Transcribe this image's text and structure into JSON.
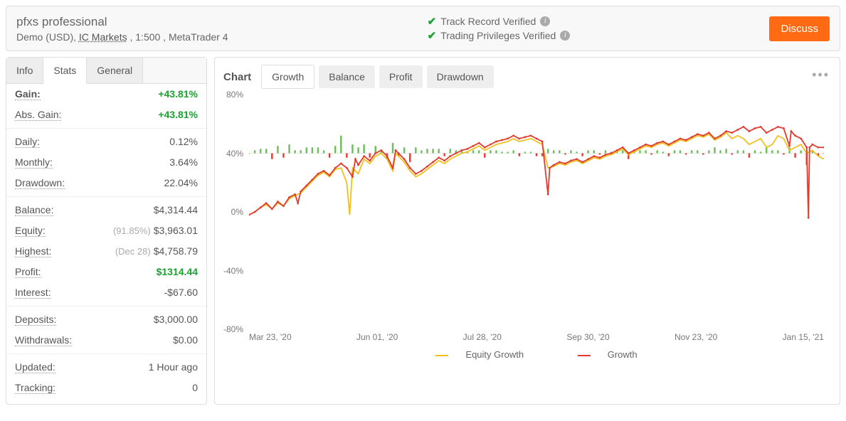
{
  "header": {
    "title": "pfxs professional",
    "sub_prefix": "Demo (USD), ",
    "broker": "IC Markets",
    "sub_suffix": " , 1:500 , MetaTrader 4",
    "verify1": "Track Record Verified",
    "verify2": "Trading Privileges Verified",
    "discuss": "Discuss"
  },
  "tabs": {
    "info": "Info",
    "stats": "Stats",
    "general": "General"
  },
  "stats": {
    "gain_label": "Gain:",
    "gain_value": "+43.81%",
    "absgain_label": "Abs. Gain:",
    "absgain_value": "+43.81%",
    "daily_label": "Daily:",
    "daily_value": "0.12%",
    "monthly_label": "Monthly:",
    "monthly_value": "3.64%",
    "drawdown_label": "Drawdown:",
    "drawdown_value": "22.04%",
    "balance_label": "Balance:",
    "balance_value": "$4,314.44",
    "equity_label": "Equity:",
    "equity_note": "(91.85%)",
    "equity_value": "$3,963.01",
    "highest_label": "Highest:",
    "highest_note": "(Dec 28)",
    "highest_value": "$4,758.79",
    "profit_label": "Profit:",
    "profit_value": "$1314.44",
    "interest_label": "Interest:",
    "interest_value": "-$67.60",
    "deposits_label": "Deposits:",
    "deposits_value": "$3,000.00",
    "withdrawals_label": "Withdrawals:",
    "withdrawals_value": "$0.00",
    "updated_label": "Updated:",
    "updated_value": "1 Hour ago",
    "tracking_label": "Tracking:",
    "tracking_value": "0"
  },
  "chart": {
    "title": "Chart",
    "tab_growth": "Growth",
    "tab_balance": "Balance",
    "tab_profit": "Profit",
    "tab_drawdown": "Drawdown",
    "ylim": [
      -80,
      80
    ],
    "yticks": [
      80,
      40,
      0,
      -40,
      -80
    ],
    "ytick_labels": [
      "80%",
      "40%",
      "0%",
      "-40%",
      "-80%"
    ],
    "xlabels": [
      "Mar 23, '20",
      "Jun 01, '20",
      "Jul 28, '20",
      "Sep 30, '20",
      "Nov 23, '20",
      "Jan 15, '21"
    ],
    "legend_equity": "Equity Growth",
    "legend_growth": "Growth",
    "colors": {
      "equity": "#f2c01e",
      "growth": "#e03c31",
      "bar_up": "#6bbf59",
      "bar_down": "#e03c31",
      "grid": "#e8e8e8",
      "bg": "#ffffff"
    },
    "line_width": 1.8,
    "growth_series": [
      [
        0,
        -2
      ],
      [
        1,
        0
      ],
      [
        2,
        3
      ],
      [
        3,
        6
      ],
      [
        4,
        2
      ],
      [
        5,
        7
      ],
      [
        6,
        4
      ],
      [
        7,
        10
      ],
      [
        8,
        12
      ],
      [
        8.5,
        6
      ],
      [
        9,
        14
      ],
      [
        10,
        18
      ],
      [
        11,
        22
      ],
      [
        12,
        26
      ],
      [
        13,
        28
      ],
      [
        14,
        25
      ],
      [
        15,
        30
      ],
      [
        16,
        33
      ],
      [
        17,
        30
      ],
      [
        18,
        24
      ],
      [
        18.5,
        36
      ],
      [
        19,
        32
      ],
      [
        20,
        38
      ],
      [
        21,
        35
      ],
      [
        22,
        40
      ],
      [
        23,
        42
      ],
      [
        24,
        38
      ],
      [
        25,
        30
      ],
      [
        25.5,
        42
      ],
      [
        26,
        40
      ],
      [
        27,
        36
      ],
      [
        28,
        30
      ],
      [
        29,
        26
      ],
      [
        30,
        28
      ],
      [
        31,
        31
      ],
      [
        32,
        34
      ],
      [
        33,
        37
      ],
      [
        34,
        35
      ],
      [
        35,
        38
      ],
      [
        36,
        40
      ],
      [
        37,
        42
      ],
      [
        38,
        43
      ],
      [
        39,
        45
      ],
      [
        40,
        47
      ],
      [
        41,
        44
      ],
      [
        42,
        46
      ],
      [
        43,
        48
      ],
      [
        44,
        49
      ],
      [
        45,
        50
      ],
      [
        46,
        52
      ],
      [
        47,
        50
      ],
      [
        48,
        51
      ],
      [
        49,
        52
      ],
      [
        50,
        50
      ],
      [
        51,
        48
      ],
      [
        52,
        12
      ],
      [
        52.3,
        30
      ],
      [
        53,
        32
      ],
      [
        54,
        34
      ],
      [
        55,
        33
      ],
      [
        56,
        35
      ],
      [
        57,
        36
      ],
      [
        58,
        34
      ],
      [
        59,
        36
      ],
      [
        60,
        38
      ],
      [
        61,
        37
      ],
      [
        62,
        39
      ],
      [
        63,
        40
      ],
      [
        64,
        42
      ],
      [
        65,
        44
      ],
      [
        66,
        40
      ],
      [
        67,
        42
      ],
      [
        68,
        44
      ],
      [
        69,
        46
      ],
      [
        70,
        45
      ],
      [
        71,
        47
      ],
      [
        72,
        48
      ],
      [
        73,
        46
      ],
      [
        74,
        48
      ],
      [
        75,
        50
      ],
      [
        76,
        49
      ],
      [
        77,
        51
      ],
      [
        78,
        53
      ],
      [
        79,
        52
      ],
      [
        80,
        54
      ],
      [
        81,
        50
      ],
      [
        82,
        52
      ],
      [
        83,
        55
      ],
      [
        84,
        54
      ],
      [
        85,
        56
      ],
      [
        86,
        58
      ],
      [
        87,
        55
      ],
      [
        88,
        57
      ],
      [
        89,
        58
      ],
      [
        90,
        54
      ],
      [
        91,
        56
      ],
      [
        92,
        58
      ],
      [
        93,
        57
      ],
      [
        94,
        45
      ],
      [
        94.3,
        55
      ],
      [
        95,
        52
      ],
      [
        96,
        50
      ],
      [
        97,
        44
      ],
      [
        97.3,
        -4
      ],
      [
        97.5,
        44
      ],
      [
        98,
        46
      ],
      [
        99,
        44
      ],
      [
        100,
        44
      ]
    ],
    "equity_series": [
      [
        0,
        -2
      ],
      [
        1,
        0
      ],
      [
        2,
        3
      ],
      [
        3,
        5
      ],
      [
        4,
        2
      ],
      [
        5,
        6
      ],
      [
        6,
        4
      ],
      [
        7,
        9
      ],
      [
        8,
        11
      ],
      [
        9,
        13
      ],
      [
        10,
        17
      ],
      [
        11,
        21
      ],
      [
        12,
        25
      ],
      [
        13,
        27
      ],
      [
        14,
        24
      ],
      [
        15,
        29
      ],
      [
        16,
        30
      ],
      [
        17,
        20
      ],
      [
        17.5,
        -2
      ],
      [
        18,
        30
      ],
      [
        19,
        26
      ],
      [
        20,
        36
      ],
      [
        21,
        33
      ],
      [
        22,
        38
      ],
      [
        23,
        40
      ],
      [
        24,
        36
      ],
      [
        25,
        28
      ],
      [
        25.5,
        40
      ],
      [
        26,
        38
      ],
      [
        27,
        34
      ],
      [
        28,
        28
      ],
      [
        29,
        24
      ],
      [
        30,
        26
      ],
      [
        31,
        29
      ],
      [
        32,
        32
      ],
      [
        33,
        35
      ],
      [
        34,
        33
      ],
      [
        35,
        36
      ],
      [
        36,
        38
      ],
      [
        37,
        40
      ],
      [
        38,
        41
      ],
      [
        39,
        43
      ],
      [
        40,
        45
      ],
      [
        41,
        42
      ],
      [
        42,
        44
      ],
      [
        43,
        46
      ],
      [
        44,
        47
      ],
      [
        45,
        48
      ],
      [
        46,
        50
      ],
      [
        47,
        48
      ],
      [
        48,
        49
      ],
      [
        49,
        50
      ],
      [
        50,
        48
      ],
      [
        51,
        46
      ],
      [
        52,
        30
      ],
      [
        53,
        31
      ],
      [
        54,
        33
      ],
      [
        55,
        32
      ],
      [
        56,
        34
      ],
      [
        57,
        35
      ],
      [
        58,
        33
      ],
      [
        59,
        35
      ],
      [
        60,
        37
      ],
      [
        61,
        36
      ],
      [
        62,
        38
      ],
      [
        63,
        39
      ],
      [
        64,
        41
      ],
      [
        65,
        43
      ],
      [
        66,
        39
      ],
      [
        67,
        41
      ],
      [
        68,
        43
      ],
      [
        69,
        45
      ],
      [
        70,
        44
      ],
      [
        71,
        46
      ],
      [
        72,
        47
      ],
      [
        73,
        45
      ],
      [
        74,
        47
      ],
      [
        75,
        49
      ],
      [
        76,
        48
      ],
      [
        77,
        50
      ],
      [
        78,
        52
      ],
      [
        79,
        51
      ],
      [
        80,
        53
      ],
      [
        81,
        49
      ],
      [
        82,
        51
      ],
      [
        83,
        54
      ],
      [
        84,
        50
      ],
      [
        85,
        52
      ],
      [
        86,
        50
      ],
      [
        87,
        46
      ],
      [
        88,
        48
      ],
      [
        89,
        50
      ],
      [
        90,
        44
      ],
      [
        91,
        46
      ],
      [
        92,
        52
      ],
      [
        93,
        50
      ],
      [
        94,
        42
      ],
      [
        95,
        44
      ],
      [
        96,
        46
      ],
      [
        97,
        40
      ],
      [
        98,
        42
      ],
      [
        99,
        38
      ],
      [
        100,
        36
      ]
    ],
    "bars": [
      [
        0,
        0
      ],
      [
        1,
        2
      ],
      [
        2,
        3
      ],
      [
        3,
        3
      ],
      [
        4,
        -4
      ],
      [
        5,
        5
      ],
      [
        6,
        -3
      ],
      [
        7,
        6
      ],
      [
        8,
        2
      ],
      [
        9,
        2
      ],
      [
        10,
        4
      ],
      [
        11,
        4
      ],
      [
        12,
        4
      ],
      [
        13,
        2
      ],
      [
        14,
        -3
      ],
      [
        15,
        5
      ],
      [
        16,
        12
      ],
      [
        17,
        -3
      ],
      [
        18,
        6
      ],
      [
        19,
        4
      ],
      [
        20,
        6
      ],
      [
        21,
        -3
      ],
      [
        22,
        5
      ],
      [
        23,
        2
      ],
      [
        24,
        -4
      ],
      [
        25,
        7
      ],
      [
        26,
        -2
      ],
      [
        27,
        4
      ],
      [
        28,
        -6
      ],
      [
        29,
        4
      ],
      [
        30,
        2
      ],
      [
        31,
        3
      ],
      [
        32,
        3
      ],
      [
        33,
        3
      ],
      [
        34,
        -2
      ],
      [
        35,
        3
      ],
      [
        36,
        2
      ],
      [
        37,
        2
      ],
      [
        38,
        1
      ],
      [
        39,
        2
      ],
      [
        40,
        2
      ],
      [
        41,
        -3
      ],
      [
        42,
        2
      ],
      [
        43,
        2
      ],
      [
        44,
        1
      ],
      [
        45,
        1
      ],
      [
        46,
        2
      ],
      [
        47,
        -2
      ],
      [
        48,
        1
      ],
      [
        49,
        1
      ],
      [
        50,
        -2
      ],
      [
        51,
        -2
      ],
      [
        52,
        3
      ],
      [
        53,
        2
      ],
      [
        54,
        2
      ],
      [
        55,
        -1
      ],
      [
        56,
        2
      ],
      [
        57,
        1
      ],
      [
        58,
        -2
      ],
      [
        59,
        2
      ],
      [
        60,
        2
      ],
      [
        61,
        -1
      ],
      [
        62,
        2
      ],
      [
        63,
        1
      ],
      [
        64,
        2
      ],
      [
        65,
        2
      ],
      [
        66,
        -4
      ],
      [
        67,
        2
      ],
      [
        68,
        2
      ],
      [
        69,
        2
      ],
      [
        70,
        -1
      ],
      [
        71,
        2
      ],
      [
        72,
        1
      ],
      [
        73,
        -2
      ],
      [
        74,
        2
      ],
      [
        75,
        2
      ],
      [
        76,
        -1
      ],
      [
        77,
        2
      ],
      [
        78,
        2
      ],
      [
        79,
        -1
      ],
      [
        80,
        2
      ],
      [
        81,
        4
      ],
      [
        82,
        2
      ],
      [
        83,
        3
      ],
      [
        84,
        -1
      ],
      [
        85,
        2
      ],
      [
        86,
        2
      ],
      [
        87,
        -3
      ],
      [
        88,
        2
      ],
      [
        89,
        1
      ],
      [
        90,
        4
      ],
      [
        91,
        2
      ],
      [
        92,
        2
      ],
      [
        93,
        -1
      ],
      [
        94,
        4
      ],
      [
        95,
        -3
      ],
      [
        96,
        2
      ],
      [
        97,
        -8
      ],
      [
        98,
        2
      ],
      [
        99,
        -2
      ],
      [
        100,
        0
      ]
    ]
  }
}
